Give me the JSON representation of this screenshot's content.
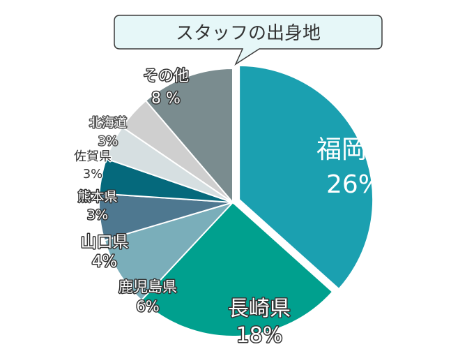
{
  "chart_data": {
    "type": "pie",
    "title": "スタッフの出身地",
    "slices": [
      {
        "name": "福岡県",
        "value": 26,
        "value_label": "26%",
        "color": "#1ba0b0",
        "exploded": true
      },
      {
        "name": "長崎県",
        "value": 18,
        "value_label": "18%",
        "color": "#00a08e"
      },
      {
        "name": "鹿児島県",
        "value": 6,
        "value_label": "6%",
        "color": "#7aaeba"
      },
      {
        "name": "山口県",
        "value": 4,
        "value_label": "4%",
        "color": "#4e7890"
      },
      {
        "name": "熊本県",
        "value": 3,
        "value_label": "3%",
        "color": "#05697c"
      },
      {
        "name": "佐賀県",
        "value": 3,
        "value_label": "3%",
        "color": "#d6dfe1"
      },
      {
        "name": "北海道",
        "value": 3,
        "value_label": "3%",
        "color": "#cfcfcf"
      },
      {
        "name": "その他",
        "value": 8,
        "value_label": "8 %",
        "color": "#7a8c8f"
      }
    ]
  }
}
